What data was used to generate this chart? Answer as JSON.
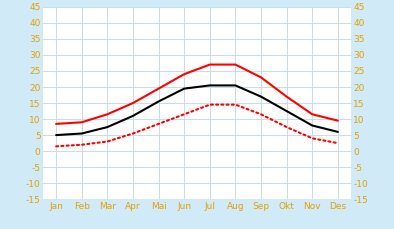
{
  "months": [
    "Jan",
    "Feb",
    "Mar",
    "Apr",
    "Mai",
    "Jun",
    "Jul",
    "Aug",
    "Sep",
    "Okt",
    "Nov",
    "Des"
  ],
  "max_temp": [
    8.5,
    9.0,
    11.5,
    15.0,
    19.5,
    24.0,
    27.0,
    27.0,
    23.0,
    17.0,
    11.5,
    9.5
  ],
  "mean_temp": [
    5.0,
    5.5,
    7.5,
    11.0,
    15.5,
    19.5,
    20.5,
    20.5,
    17.0,
    12.5,
    8.0,
    6.0
  ],
  "min_temp": [
    1.5,
    2.0,
    3.0,
    5.5,
    8.5,
    11.5,
    14.5,
    14.5,
    11.5,
    7.5,
    4.0,
    2.5
  ],
  "ylim": [
    -15,
    45
  ],
  "yticks": [
    -15,
    -10,
    -5,
    0,
    5,
    10,
    15,
    20,
    25,
    30,
    35,
    40,
    45
  ],
  "max_color": "#ff0000",
  "mean_color": "#000000",
  "min_color": "#ff0000",
  "plot_bg_color": "#ffffff",
  "grid_color": "#c8dce8",
  "tick_color": "#e8a000",
  "fig_bg_color": "#d0eaf8"
}
